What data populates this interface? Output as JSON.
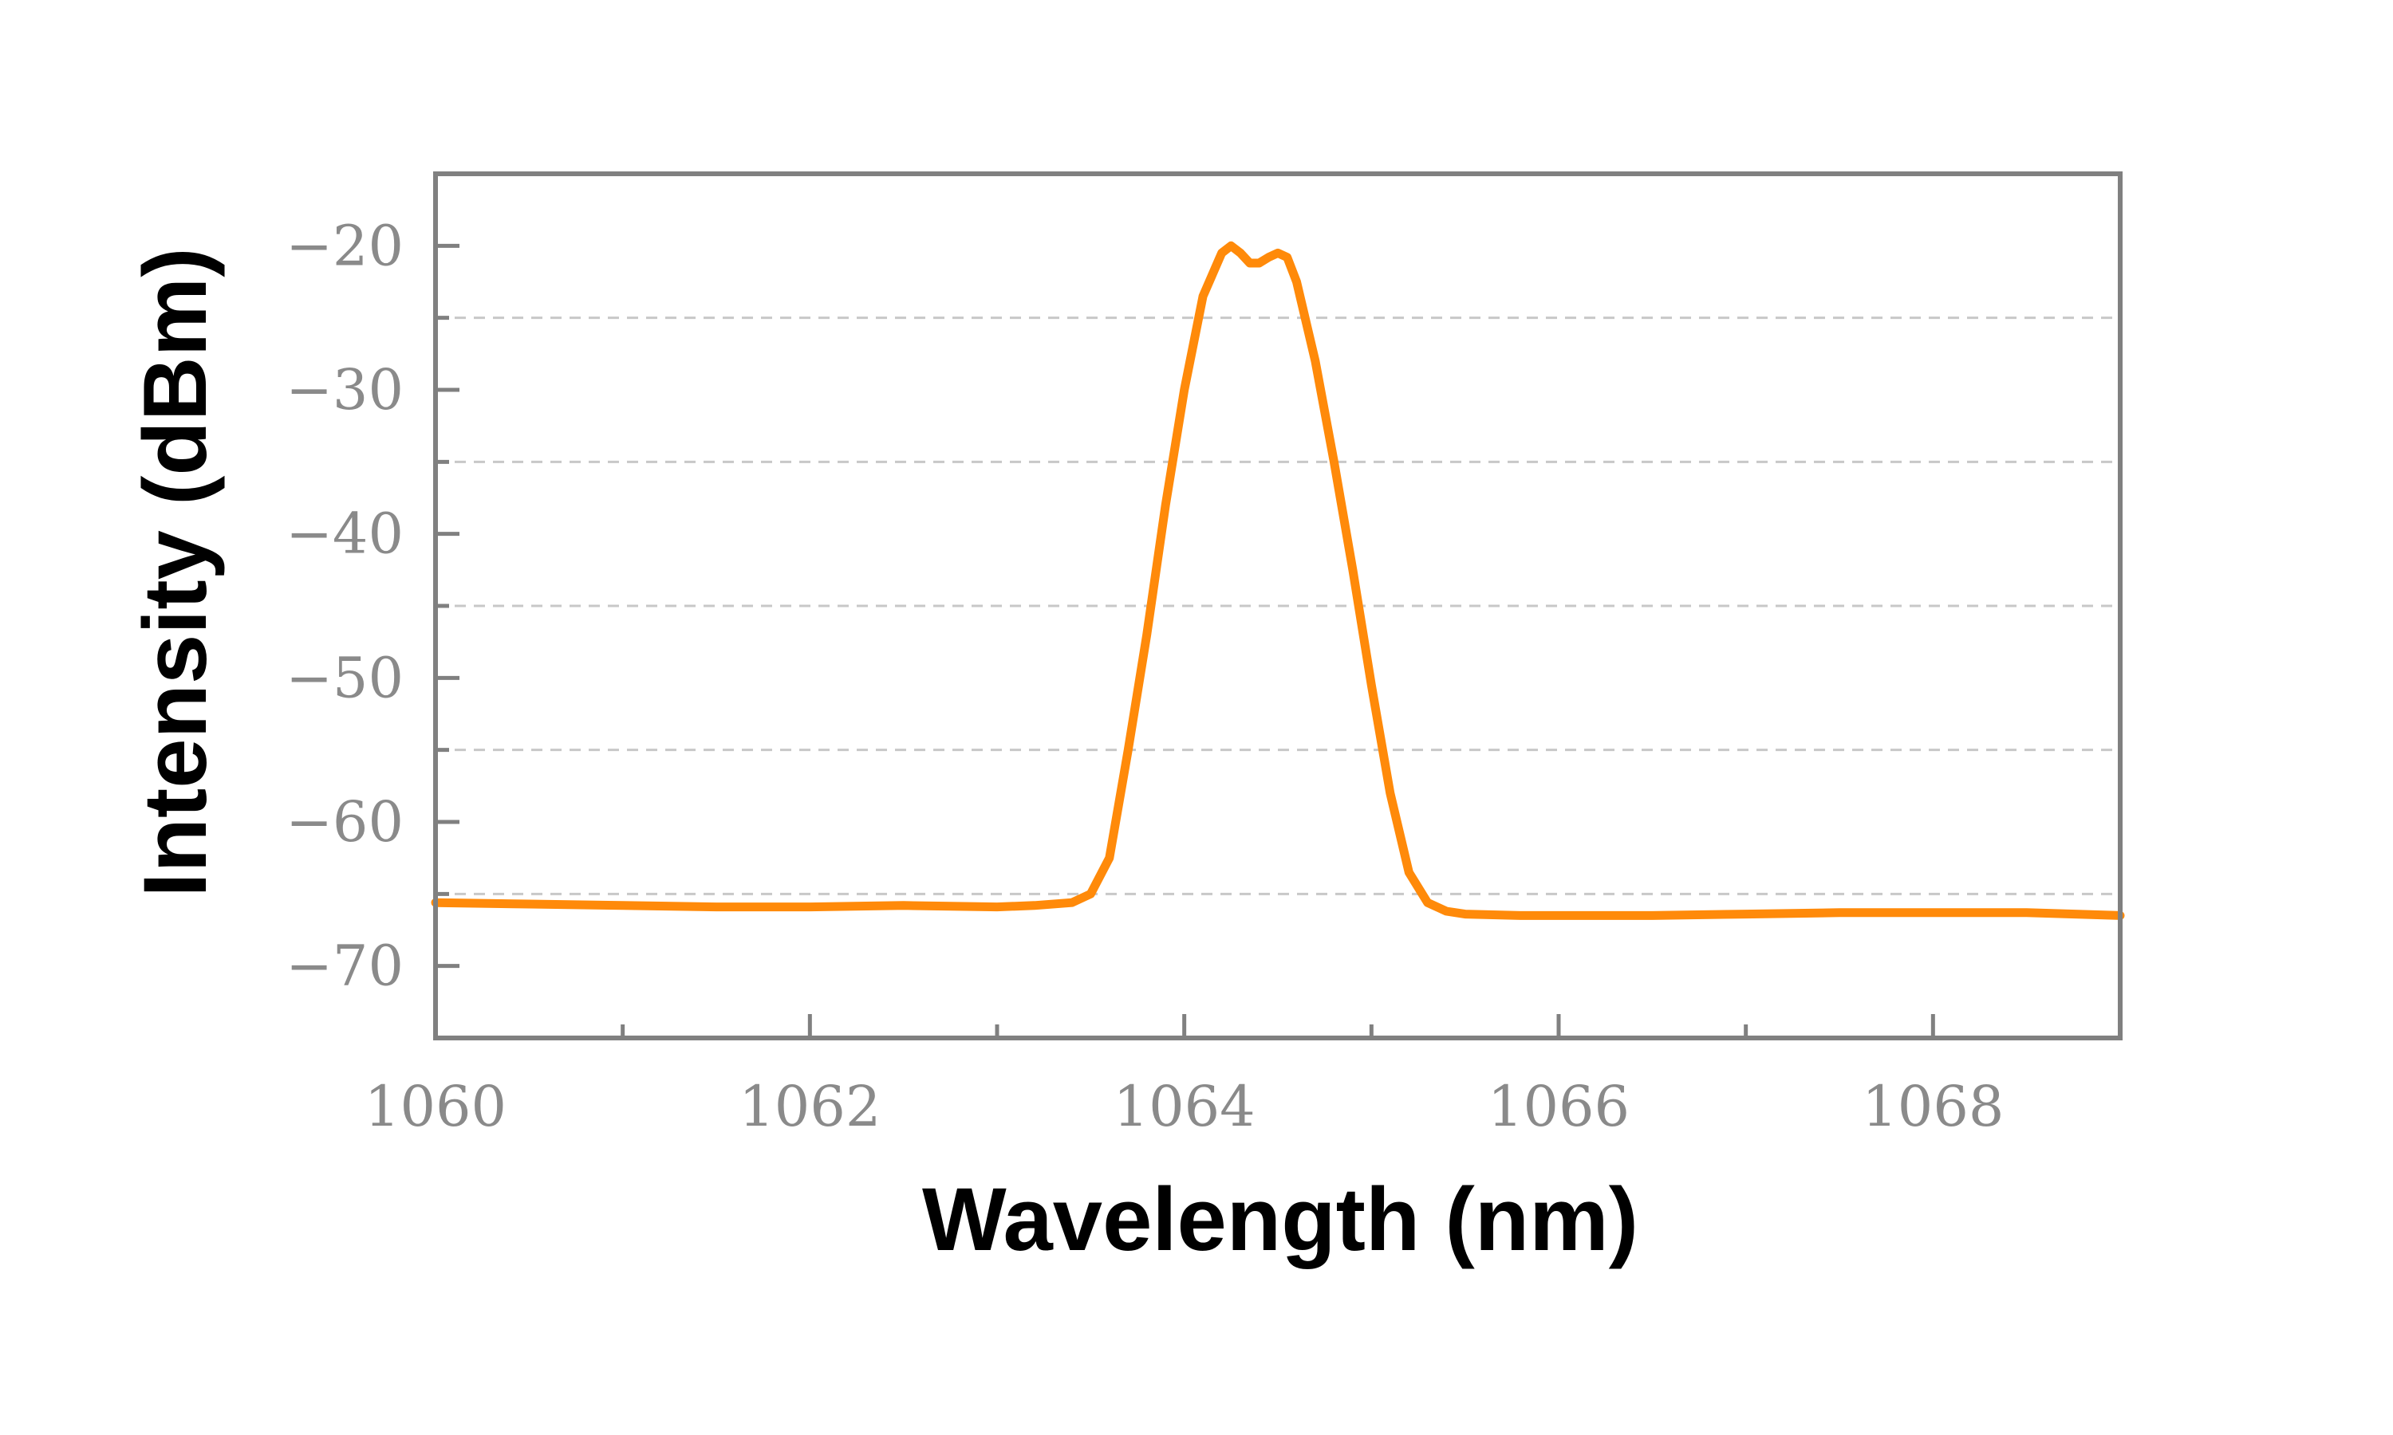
{
  "chart_data": {
    "type": "line",
    "title": "",
    "xlabel": "Wavelength (nm)",
    "ylabel": "Intensity (dBm)",
    "xlim": [
      1060,
      1069
    ],
    "ylim": [
      -75,
      -15
    ],
    "x_ticks": [
      1060,
      1062,
      1064,
      1066,
      1068
    ],
    "x_minor_ticks": [
      1061,
      1063,
      1065,
      1067
    ],
    "x_tick_labels": [
      "1060",
      "1062",
      "1064",
      "1066",
      "1068"
    ],
    "y_ticks": [
      -20,
      -30,
      -40,
      -50,
      -60,
      -70
    ],
    "y_tick_labels": [
      "−20",
      "−30",
      "−40",
      "−50",
      "−60",
      "−70"
    ],
    "y_gridlines": [
      -25,
      -35,
      -45,
      -55,
      -65
    ],
    "grid": "horizontal dashed",
    "legend": "none",
    "colors": {
      "line": "#ff8a0a",
      "axis": "#808080",
      "grid": "#c8c8c8"
    },
    "series": [
      {
        "x": [
          1060.0,
          1060.5,
          1061.0,
          1061.5,
          1062.0,
          1062.5,
          1063.0,
          1063.2,
          1063.4,
          1063.5,
          1063.6,
          1063.7,
          1063.8,
          1063.9,
          1064.0,
          1064.1,
          1064.2,
          1064.25,
          1064.3,
          1064.35,
          1064.4,
          1064.45,
          1064.5,
          1064.55,
          1064.6,
          1064.7,
          1064.8,
          1064.9,
          1065.0,
          1065.1,
          1065.2,
          1065.3,
          1065.4,
          1065.5,
          1065.8,
          1066.0,
          1066.5,
          1067.0,
          1067.5,
          1068.0,
          1068.5,
          1069.0
        ],
        "y": [
          -65.6,
          -65.7,
          -65.8,
          -65.9,
          -65.9,
          -65.8,
          -65.9,
          -65.8,
          -65.6,
          -65.0,
          -62.5,
          -55.0,
          -47.0,
          -38.0,
          -30.0,
          -23.5,
          -20.5,
          -20.0,
          -20.5,
          -21.2,
          -21.2,
          -20.8,
          -20.5,
          -20.8,
          -22.5,
          -28.0,
          -35.0,
          -42.5,
          -50.5,
          -58.0,
          -63.5,
          -65.6,
          -66.2,
          -66.4,
          -66.5,
          -66.5,
          -66.5,
          -66.4,
          -66.3,
          -66.3,
          -66.3,
          -66.5
        ]
      }
    ]
  }
}
